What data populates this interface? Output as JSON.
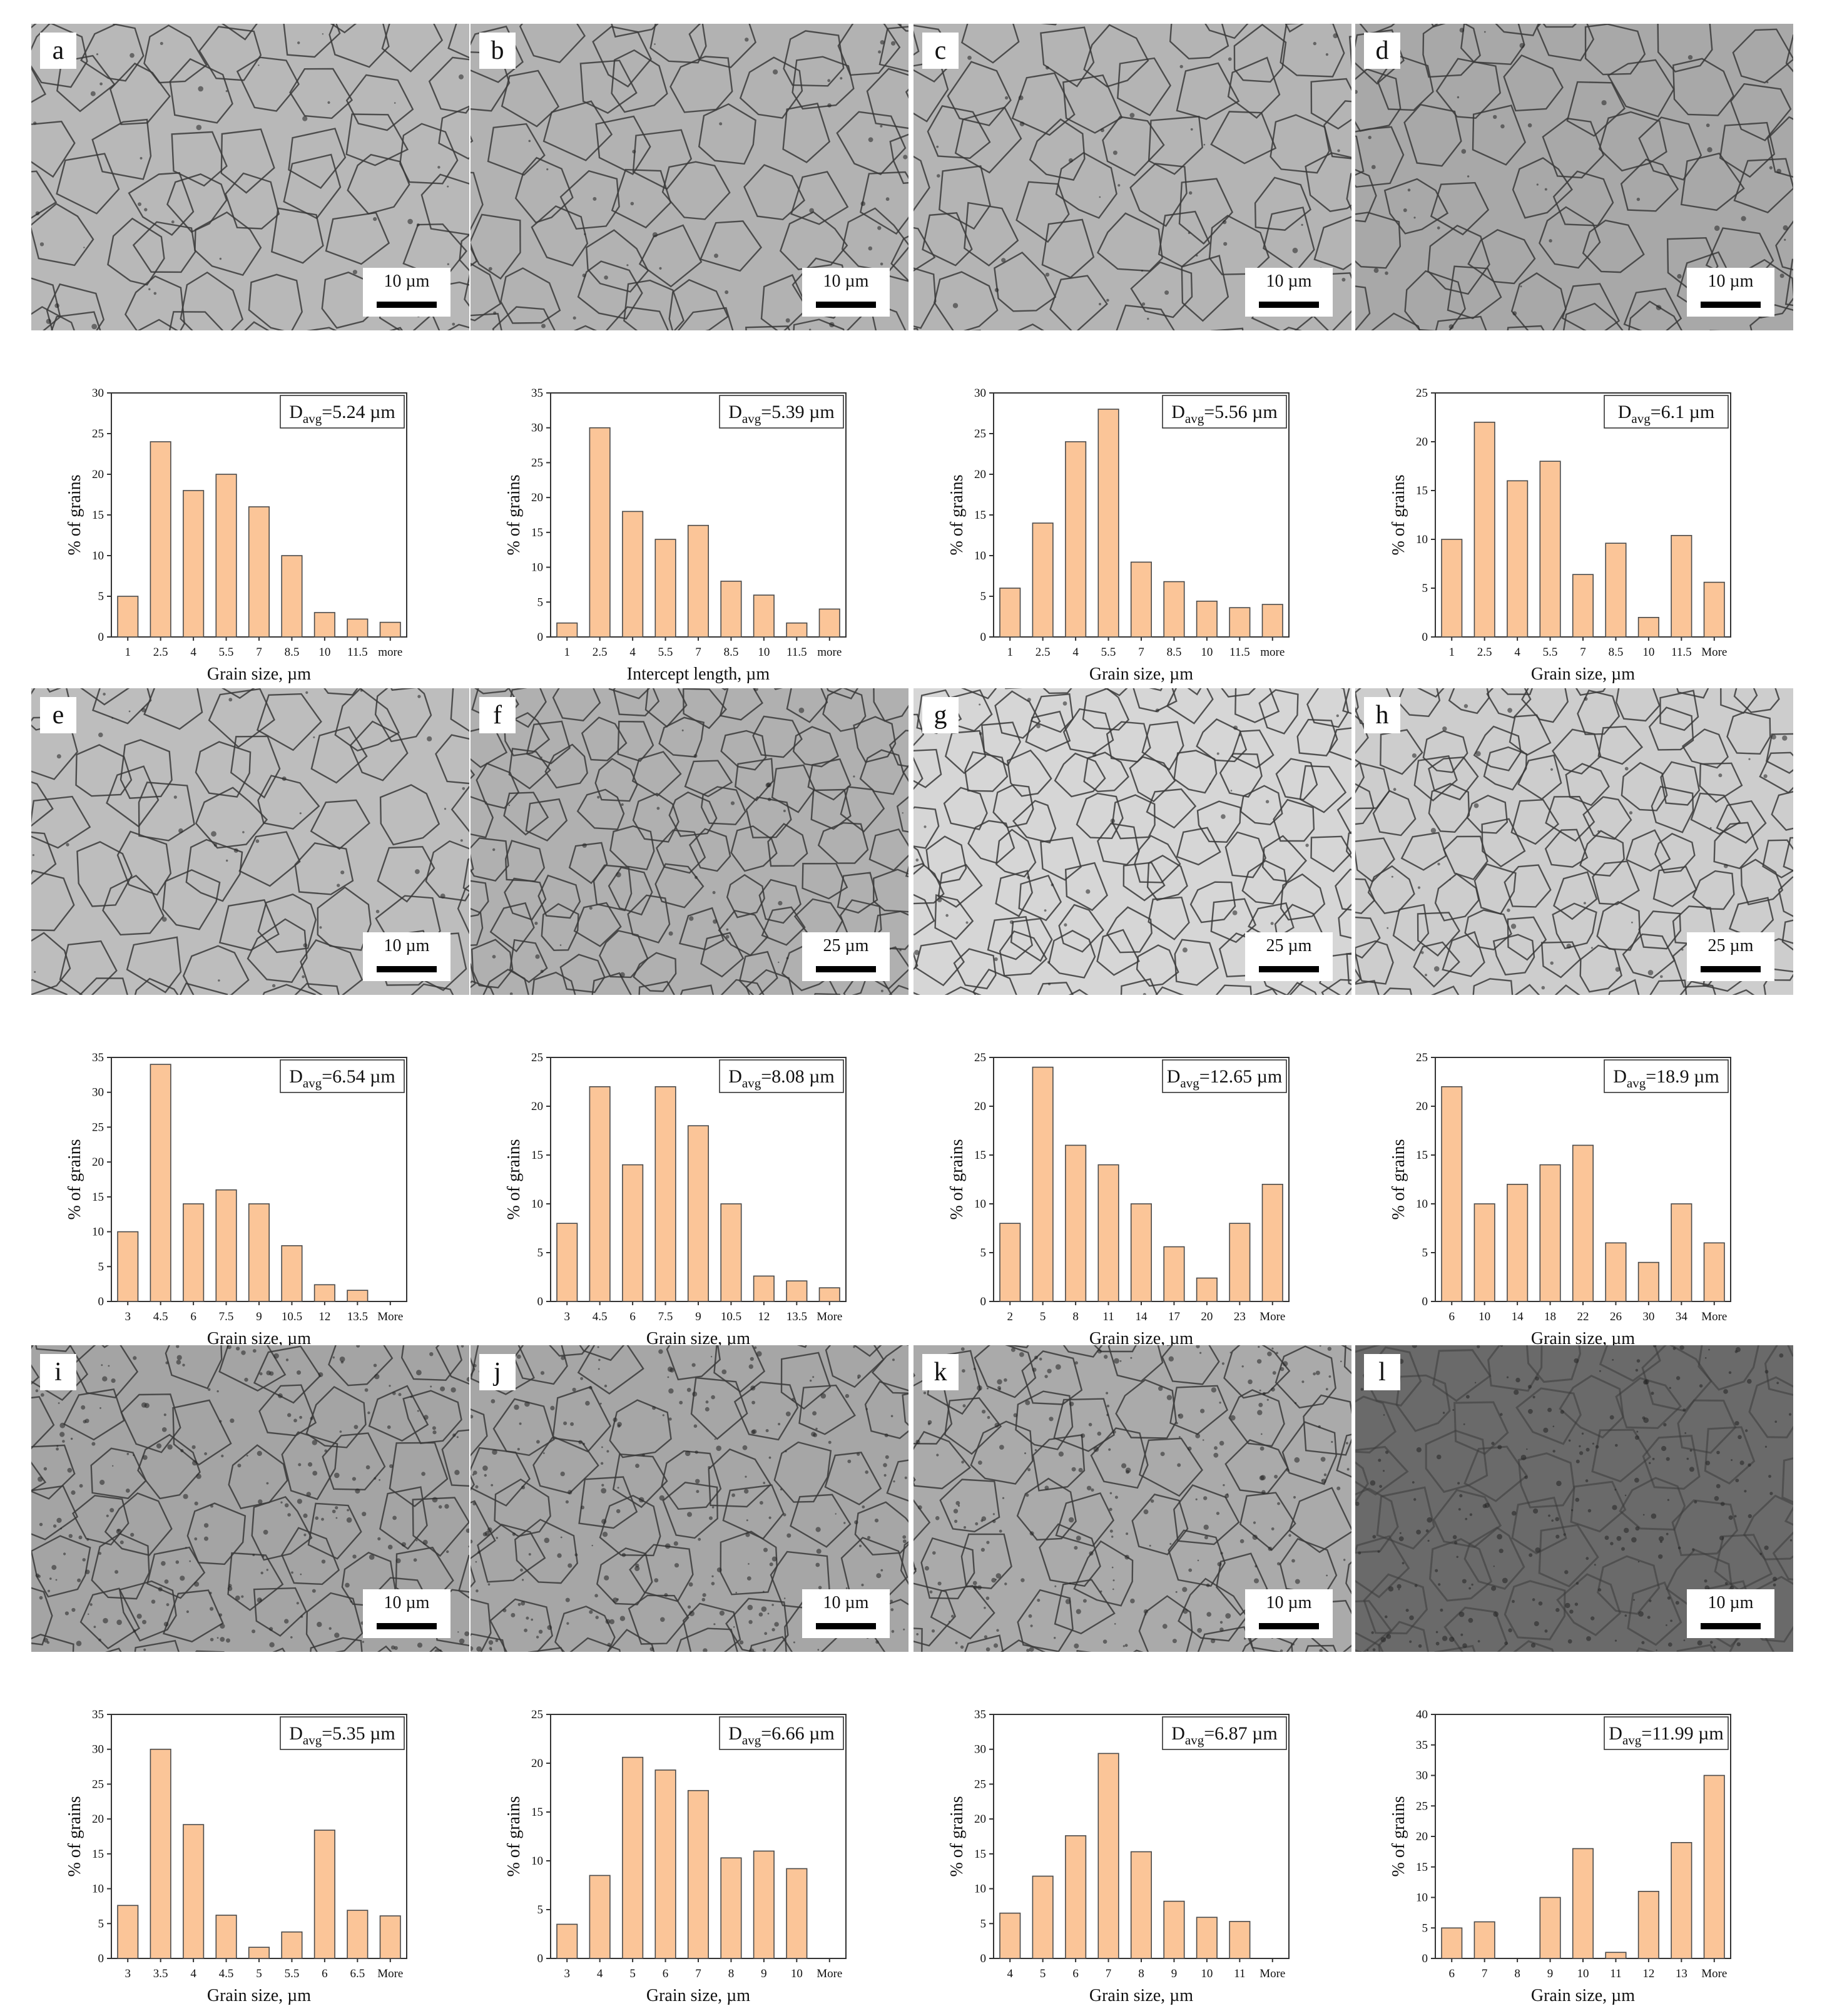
{
  "figure": {
    "panels": [
      {
        "letter": "a",
        "scale_label": "10 µm",
        "tone": "#b8b8b8",
        "chart_data": {
          "type": "bar",
          "categories": [
            "1",
            "2.5",
            "4",
            "5.5",
            "7",
            "8.5",
            "10",
            "11.5",
            "more"
          ],
          "values": [
            5,
            24,
            18,
            20,
            16,
            10,
            3,
            2.2,
            1.8
          ],
          "ylim": [
            0,
            30
          ],
          "yticks": [
            0,
            5,
            10,
            15,
            20,
            25,
            30
          ],
          "xlabel": "Grain size, µm",
          "ylabel": "% of grains",
          "davg_base": "D",
          "davg_sub": "avg",
          "davg_value": "=5.24 µm"
        }
      },
      {
        "letter": "b",
        "scale_label": "10 µm",
        "tone": "#b2b2b2",
        "chart_data": {
          "type": "bar",
          "categories": [
            "1",
            "2.5",
            "4",
            "5.5",
            "7",
            "8.5",
            "10",
            "11.5",
            "more"
          ],
          "values": [
            2,
            30,
            18,
            14,
            16,
            8,
            6,
            2,
            4
          ],
          "ylim": [
            0,
            35
          ],
          "yticks": [
            0,
            5,
            10,
            15,
            20,
            25,
            30,
            35
          ],
          "xlabel": "Intercept length, µm",
          "ylabel": "% of grains",
          "davg_base": "D",
          "davg_sub": "avg",
          "davg_value": "=5.39 µm"
        }
      },
      {
        "letter": "c",
        "scale_label": "10 µm",
        "tone": "#b4b4b4",
        "chart_data": {
          "type": "bar",
          "categories": [
            "1",
            "2.5",
            "4",
            "5.5",
            "7",
            "8.5",
            "10",
            "11.5",
            "more"
          ],
          "values": [
            6,
            14,
            24,
            28,
            9.2,
            6.8,
            4.4,
            3.6,
            4
          ],
          "ylim": [
            0,
            30
          ],
          "yticks": [
            0,
            5,
            10,
            15,
            20,
            25,
            30
          ],
          "xlabel": "Grain size, µm",
          "ylabel": "% of grains",
          "davg_base": "D",
          "davg_sub": "avg",
          "davg_value": "=5.56 µm"
        }
      },
      {
        "letter": "d",
        "scale_label": "10 µm",
        "tone": "#a8a8a8",
        "chart_data": {
          "type": "bar",
          "categories": [
            "1",
            "2.5",
            "4",
            "5.5",
            "7",
            "8.5",
            "10",
            "11.5",
            "More"
          ],
          "values": [
            10,
            22,
            16,
            18,
            6.4,
            9.6,
            2,
            10.4,
            5.6
          ],
          "ylim": [
            0,
            25
          ],
          "yticks": [
            0,
            5,
            10,
            15,
            20,
            25
          ],
          "xlabel": "Grain size, µm",
          "ylabel": "% of grains",
          "davg_base": "D",
          "davg_sub": "avg",
          "davg_value": "=6.1 µm"
        }
      },
      {
        "letter": "e",
        "scale_label": "10 µm",
        "tone": "#bdbdbd",
        "chart_data": {
          "type": "bar",
          "categories": [
            "3",
            "4.5",
            "6",
            "7.5",
            "9",
            "10.5",
            "12",
            "13.5",
            "More"
          ],
          "values": [
            10,
            34,
            14,
            16,
            14,
            8,
            2.4,
            1.6,
            0
          ],
          "ylim": [
            0,
            35
          ],
          "yticks": [
            0,
            5,
            10,
            15,
            20,
            25,
            30,
            35
          ],
          "xlabel": "Grain size, µm",
          "ylabel": "% of grains",
          "davg_base": "D",
          "davg_sub": "avg",
          "davg_value": "=6.54 µm"
        }
      },
      {
        "letter": "f",
        "scale_label": "25 µm",
        "tone": "#b0b0b0",
        "chart_data": {
          "type": "bar",
          "categories": [
            "3",
            "4.5",
            "6",
            "7.5",
            "9",
            "10.5",
            "12",
            "13.5",
            "More"
          ],
          "values": [
            8,
            22,
            14,
            22,
            18,
            10,
            2.6,
            2.1,
            1.4
          ],
          "ylim": [
            0,
            25
          ],
          "yticks": [
            0,
            5,
            10,
            15,
            20,
            25
          ],
          "xlabel": "Grain size, µm",
          "ylabel": "% of grains",
          "davg_base": "D",
          "davg_sub": "avg",
          "davg_value": "=8.08 µm"
        }
      },
      {
        "letter": "g",
        "scale_label": "25 µm",
        "tone": "#d6d6d6",
        "chart_data": {
          "type": "bar",
          "categories": [
            "2",
            "5",
            "8",
            "11",
            "14",
            "17",
            "20",
            "23",
            "More"
          ],
          "values": [
            8,
            24,
            16,
            14,
            10,
            5.6,
            2.4,
            8,
            12
          ],
          "ylim": [
            0,
            25
          ],
          "yticks": [
            0,
            5,
            10,
            15,
            20,
            25
          ],
          "xlabel": "Grain size, µm",
          "ylabel": "% of grains",
          "davg_base": "D",
          "davg_sub": "avg",
          "davg_value": "=12.65 µm"
        }
      },
      {
        "letter": "h",
        "scale_label": "25 µm",
        "tone": "#cdcdcd",
        "chart_data": {
          "type": "bar",
          "categories": [
            "6",
            "10",
            "14",
            "18",
            "22",
            "26",
            "30",
            "34",
            "More"
          ],
          "values": [
            22,
            10,
            12,
            14,
            16,
            6,
            4,
            10,
            6
          ],
          "ylim": [
            0,
            25
          ],
          "yticks": [
            0,
            5,
            10,
            15,
            20,
            25
          ],
          "xlabel": "Grain size, µm",
          "ylabel": "% of grains",
          "davg_base": "D",
          "davg_sub": "avg",
          "davg_value": "=18.9 µm"
        }
      },
      {
        "letter": "i",
        "scale_label": "10 µm",
        "tone": "#a4a4a4",
        "chart_data": {
          "type": "bar",
          "categories": [
            "3",
            "3.5",
            "4",
            "4.5",
            "5",
            "5.5",
            "6",
            "6.5",
            "More"
          ],
          "values": [
            7.6,
            30,
            19.2,
            6.2,
            1.6,
            3.8,
            18.4,
            6.9,
            6.1
          ],
          "ylim": [
            0,
            35
          ],
          "yticks": [
            0,
            5,
            10,
            15,
            20,
            25,
            30,
            35
          ],
          "xlabel": "Grain size, µm",
          "ylabel": "% of grains",
          "davg_base": "D",
          "davg_sub": "avg",
          "davg_value": "=5.35 µm"
        }
      },
      {
        "letter": "j",
        "scale_label": "10 µm",
        "tone": "#a6a6a6",
        "chart_data": {
          "type": "bar",
          "categories": [
            "3",
            "4",
            "5",
            "6",
            "7",
            "8",
            "9",
            "10",
            "More"
          ],
          "values": [
            3.5,
            8.5,
            20.6,
            19.3,
            17.2,
            10.3,
            11,
            9.2,
            0
          ],
          "ylim": [
            0,
            25
          ],
          "yticks": [
            0,
            5,
            10,
            15,
            20,
            25
          ],
          "xlabel": "Grain size, µm",
          "ylabel": "% of grains",
          "davg_base": "D",
          "davg_sub": "avg",
          "davg_value": "=6.66 µm"
        }
      },
      {
        "letter": "k",
        "scale_label": "10 µm",
        "tone": "#aaaaaa",
        "chart_data": {
          "type": "bar",
          "categories": [
            "4",
            "5",
            "6",
            "7",
            "8",
            "9",
            "10",
            "11",
            "More"
          ],
          "values": [
            6.5,
            11.8,
            17.6,
            29.4,
            15.3,
            8.2,
            5.9,
            5.3,
            0
          ],
          "ylim": [
            0,
            35
          ],
          "yticks": [
            0,
            5,
            10,
            15,
            20,
            25,
            30,
            35
          ],
          "xlabel": "Grain size, µm",
          "ylabel": "% of grains",
          "davg_base": "D",
          "davg_sub": "avg",
          "davg_value": "=6.87 µm"
        }
      },
      {
        "letter": "l",
        "scale_label": "10 µm",
        "tone": "#6a6a6a",
        "chart_data": {
          "type": "bar",
          "categories": [
            "6",
            "7",
            "8",
            "9",
            "10",
            "11",
            "12",
            "13",
            "More"
          ],
          "values": [
            5,
            6,
            0,
            10,
            18,
            1,
            11,
            19,
            30
          ],
          "ylim": [
            0,
            40
          ],
          "yticks": [
            0,
            5,
            10,
            15,
            20,
            25,
            30,
            35,
            40
          ],
          "xlabel": "Grain size, µm",
          "ylabel": "% of grains",
          "davg_base": "D",
          "davg_sub": "avg",
          "davg_value": "=11.99 µm"
        }
      }
    ],
    "colors": {
      "bar_fill": "#fbc598",
      "bar_stroke": "#4a4a4a",
      "boundary": "#3a3a3a",
      "axis": "#333333"
    }
  }
}
